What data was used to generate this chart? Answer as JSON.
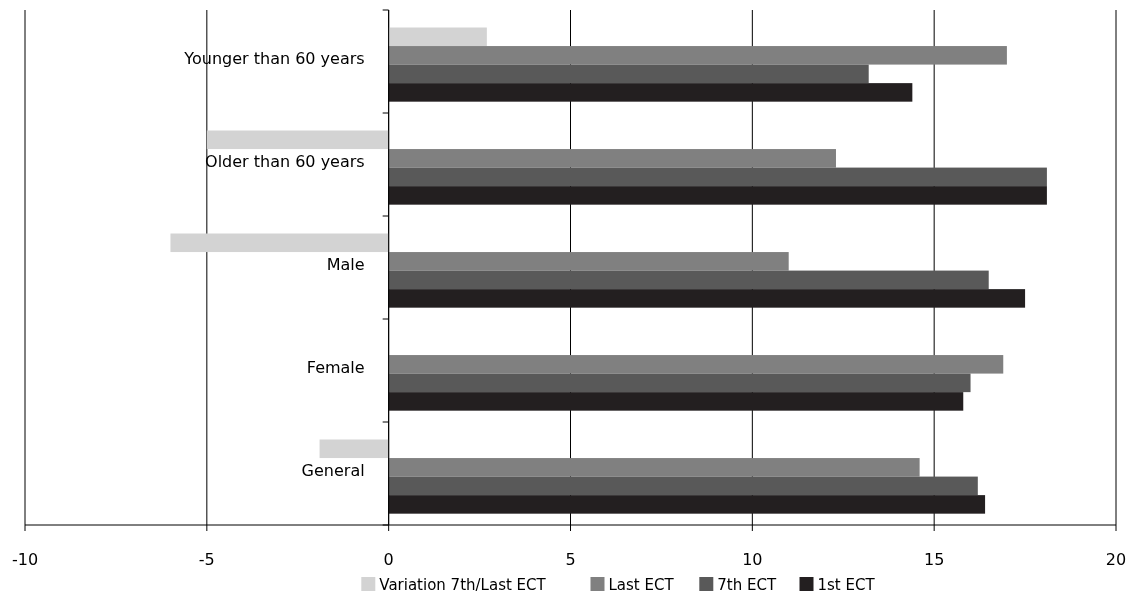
{
  "chart_data": {
    "type": "bar",
    "orientation": "horizontal",
    "categories": [
      "Younger than 60 years",
      "Older than 60 years",
      "Male",
      "Female",
      "General"
    ],
    "series": [
      {
        "name": "Variation 7th/Last ECT",
        "color": "#d3d3d3",
        "values": [
          2.7,
          -5.0,
          -6.0,
          null,
          -1.9
        ]
      },
      {
        "name": "Last ECT",
        "color": "#808080",
        "values": [
          17.0,
          12.3,
          11.0,
          16.9,
          14.6
        ]
      },
      {
        "name": "7th ECT",
        "color": "#595959",
        "values": [
          13.2,
          18.1,
          16.5,
          16.0,
          16.2
        ]
      },
      {
        "name": "1st ECT",
        "color": "#231f20",
        "values": [
          14.4,
          18.1,
          17.5,
          15.8,
          16.4
        ]
      }
    ],
    "xlim": [
      -10,
      20
    ],
    "xticks": [
      -10,
      -5,
      0,
      5,
      10,
      15,
      20
    ],
    "grid": "x",
    "legend": "bottom"
  }
}
